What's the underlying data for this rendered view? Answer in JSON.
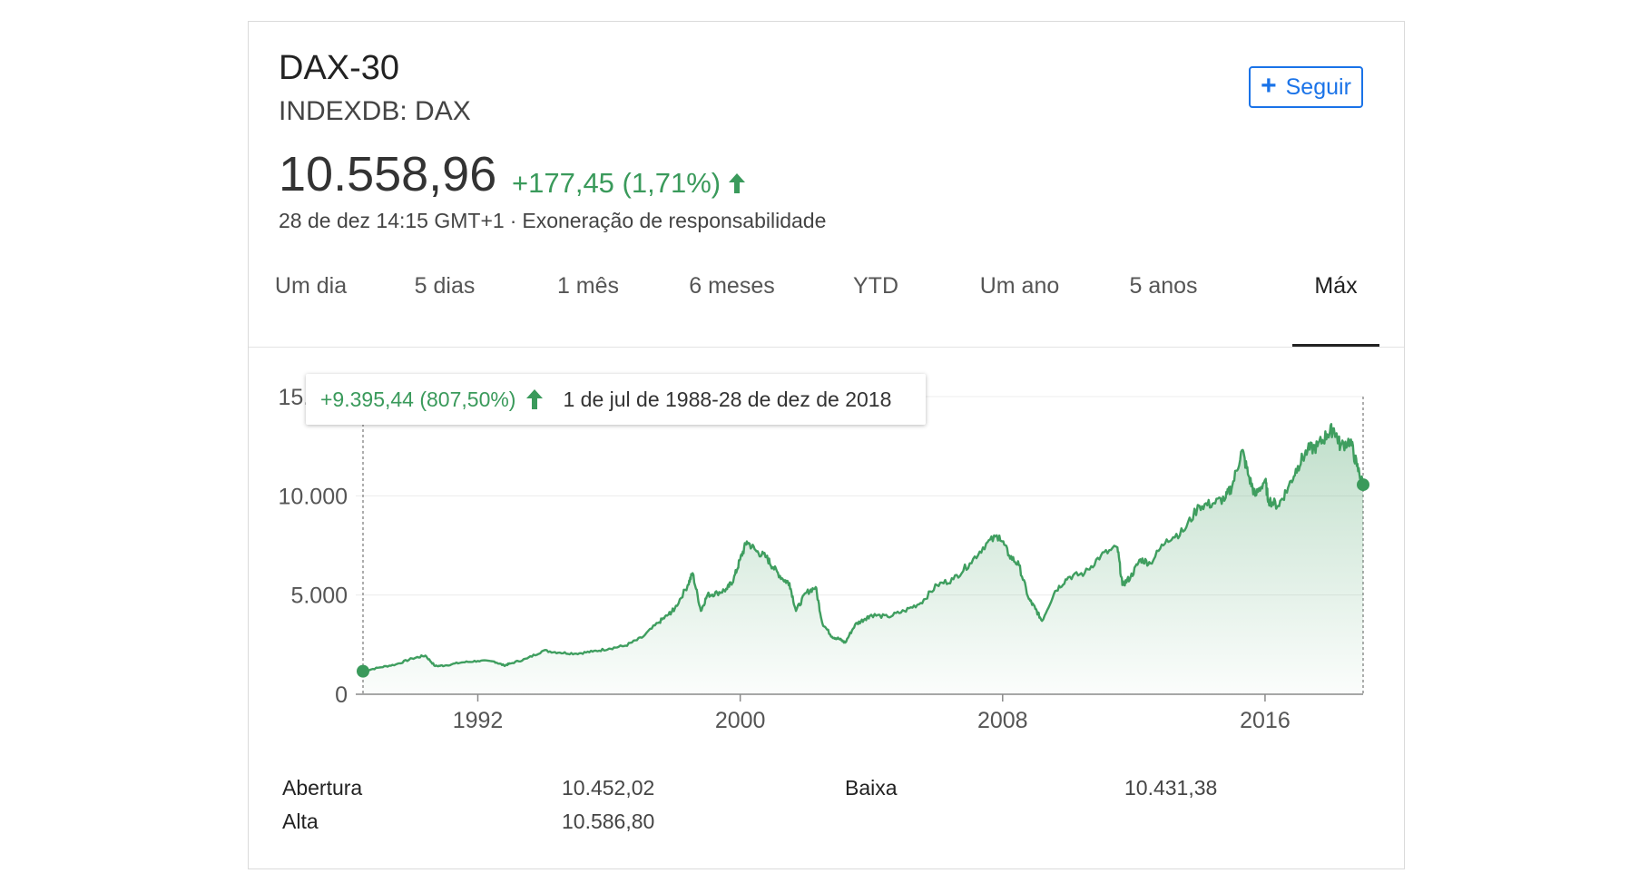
{
  "header": {
    "name": "DAX-30",
    "ticker": "INDEXDB: DAX",
    "follow_label": "Seguir",
    "price": "10.558,96",
    "change": "+177,45 (1,71%)",
    "timestamp": "28 de dez 14:15 GMT+1",
    "separator": "·",
    "disclaimer": "Exoneração de responsabilidade"
  },
  "tabs": [
    {
      "label": "Um dia"
    },
    {
      "label": "5 dias"
    },
    {
      "label": "1 mês"
    },
    {
      "label": "6 meses"
    },
    {
      "label": "YTD"
    },
    {
      "label": "Um ano"
    },
    {
      "label": "5 anos"
    },
    {
      "label": "Máx",
      "active": true
    }
  ],
  "tooltip": {
    "change": "+9.395,44 (807,50%)",
    "range": "1 de jul de 1988-28 de dez de 2018"
  },
  "stats": {
    "open_label": "Abertura",
    "open_value": "10.452,02",
    "low_label": "Baixa",
    "low_value": "10.431,38",
    "high_label": "Alta",
    "high_value": "10.586,80"
  },
  "colors": {
    "up": "#3a9a5b",
    "accent": "#1a73e8",
    "line": "#3f9e5f"
  },
  "icons": {
    "follow": "plus-icon",
    "change": "arrow-up-icon"
  },
  "chart_data": {
    "type": "area",
    "title": "",
    "xlabel": "",
    "ylabel": "",
    "ylim": [
      0,
      15000
    ],
    "xlim": [
      1988.5,
      2018.99
    ],
    "yticks": [
      "0",
      "5.000",
      "10.000",
      "15.000"
    ],
    "ytick_values": [
      0,
      5000,
      10000,
      15000
    ],
    "xticks": [
      "1992",
      "2000",
      "2008",
      "2016"
    ],
    "xtick_values": [
      1992,
      2000,
      2008,
      2016
    ],
    "grid": true,
    "series": [
      {
        "x": [
          1988.5,
          1989.0,
          1989.5,
          1990.0,
          1990.4,
          1990.7,
          1991.0,
          1991.5,
          1992.0,
          1992.5,
          1992.8,
          1993.0,
          1993.5,
          1994.0,
          1994.5,
          1995.0,
          1995.5,
          1996.0,
          1996.5,
          1997.0,
          1997.5,
          1997.8,
          1998.0,
          1998.4,
          1998.55,
          1998.8,
          1999.0,
          1999.3,
          1999.6,
          1999.8,
          2000.0,
          2000.2,
          2000.5,
          2000.8,
          2001.0,
          2001.3,
          2001.5,
          2001.7,
          2002.0,
          2002.3,
          2002.5,
          2002.8,
          2003.0,
          2003.2,
          2003.5,
          2003.8,
          2004.0,
          2004.5,
          2005.0,
          2005.5,
          2006.0,
          2006.5,
          2007.0,
          2007.5,
          2007.9,
          2008.2,
          2008.5,
          2008.8,
          2009.0,
          2009.2,
          2009.6,
          2010.0,
          2010.5,
          2011.0,
          2011.5,
          2011.65,
          2011.9,
          2012.2,
          2012.5,
          2013.0,
          2013.5,
          2014.0,
          2014.4,
          2014.8,
          2015.0,
          2015.3,
          2015.5,
          2015.7,
          2016.0,
          2016.1,
          2016.4,
          2016.7,
          2017.0,
          2017.3,
          2017.6,
          2017.9,
          2018.1,
          2018.3,
          2018.6,
          2018.8,
          2018.99
        ],
        "values": [
          1160,
          1350,
          1500,
          1800,
          1950,
          1420,
          1450,
          1600,
          1680,
          1650,
          1450,
          1550,
          1800,
          2200,
          2100,
          2050,
          2150,
          2300,
          2450,
          2850,
          3600,
          4000,
          4300,
          5500,
          6100,
          4200,
          5000,
          5100,
          5300,
          5800,
          6800,
          7700,
          7200,
          6900,
          6400,
          5800,
          5600,
          4200,
          5100,
          5400,
          3600,
          2900,
          2800,
          2600,
          3500,
          3800,
          4000,
          3900,
          4200,
          4600,
          5500,
          5800,
          6600,
          7600,
          8000,
          7000,
          6500,
          4800,
          4300,
          3700,
          5200,
          5900,
          6100,
          7000,
          7400,
          5500,
          5900,
          6800,
          6600,
          7800,
          8200,
          9500,
          9600,
          9900,
          10500,
          12300,
          11000,
          10000,
          10800,
          9800,
          9500,
          10400,
          11500,
          12300,
          12500,
          13100,
          13400,
          12500,
          12800,
          11500,
          10558.96
        ]
      }
    ],
    "start_marker": {
      "x": 1988.5,
      "y": 1160
    },
    "end_marker": {
      "x": 2018.99,
      "y": 10558.96
    }
  }
}
